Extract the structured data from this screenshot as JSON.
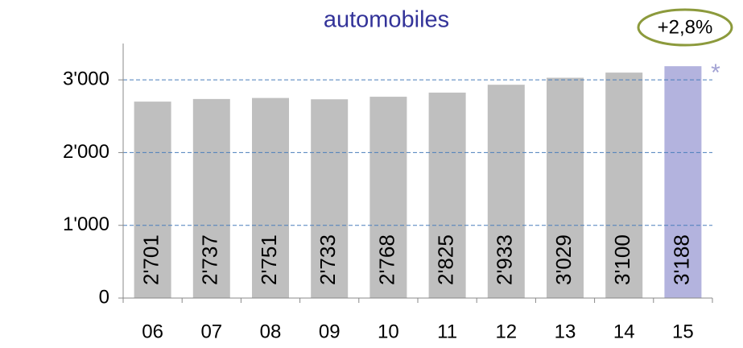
{
  "chart_data": {
    "type": "bar",
    "title": "automobiles",
    "categories": [
      "06",
      "07",
      "08",
      "09",
      "10",
      "11",
      "12",
      "13",
      "14",
      "15"
    ],
    "values": [
      2701,
      2737,
      2751,
      2733,
      2768,
      2825,
      2933,
      3029,
      3100,
      3188
    ],
    "value_labels": [
      "2'701",
      "2'737",
      "2'751",
      "2'733",
      "2'768",
      "2'825",
      "2'933",
      "3'029",
      "3'100",
      "3'188"
    ],
    "colors": [
      "#bfbfbf",
      "#bfbfbf",
      "#bfbfbf",
      "#bfbfbf",
      "#bfbfbf",
      "#bfbfbf",
      "#bfbfbf",
      "#bfbfbf",
      "#bfbfbf",
      "#b3b3de"
    ],
    "ylim": [
      0,
      3500
    ],
    "yticks": [
      0,
      {
        "value": 1000,
        "label": "1'000"
      },
      {
        "value": 2000,
        "label": "2'000"
      },
      {
        "value": 3000,
        "label": "3'000"
      }
    ],
    "grid": true,
    "annotations": [
      "+2,8%",
      "*"
    ]
  }
}
